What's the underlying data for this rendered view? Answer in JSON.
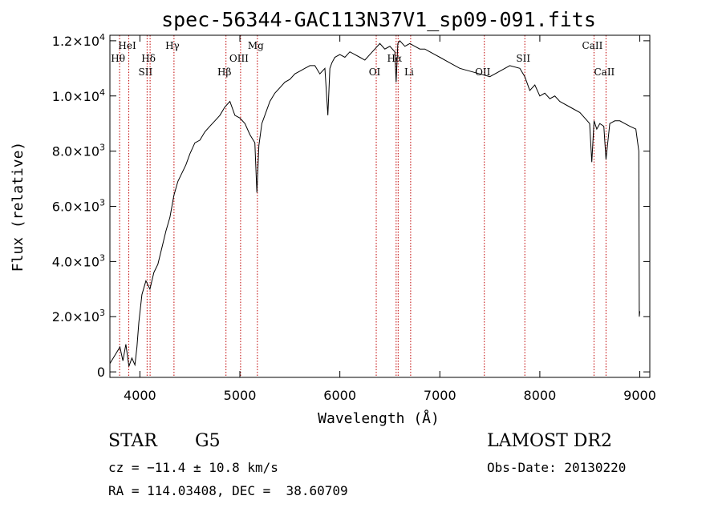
{
  "chart_data": {
    "type": "line",
    "title": "spec-56344-GAC113N37V1_sp09-091.fits",
    "xlabel": "Wavelength (Å)",
    "ylabel": "Flux (relative)",
    "xlim": [
      3700,
      9100
    ],
    "ylim": [
      -200,
      12200
    ],
    "x_ticks": [
      4000,
      5000,
      6000,
      7000,
      8000,
      9000
    ],
    "x_tick_labels": [
      "4000",
      "5000",
      "6000",
      "7000",
      "8000",
      "9000"
    ],
    "y_ticks": [
      0,
      2000,
      4000,
      6000,
      8000,
      10000,
      12000
    ],
    "y_tick_labels": [
      {
        "mant": "0",
        "exp": ""
      },
      {
        "mant": "2.0×10",
        "exp": "3"
      },
      {
        "mant": "4.0×10",
        "exp": "3"
      },
      {
        "mant": "6.0×10",
        "exp": "3"
      },
      {
        "mant": "8.0×10",
        "exp": "3"
      },
      {
        "mant": "1.0×10",
        "exp": "4"
      },
      {
        "mant": "1.2×10",
        "exp": "4"
      }
    ],
    "grid": false,
    "series": [
      {
        "color": "#000000",
        "x": [
          3700,
          3750,
          3800,
          3830,
          3860,
          3890,
          3920,
          3950,
          3970,
          3990,
          4020,
          4060,
          4100,
          4140,
          4180,
          4220,
          4260,
          4300,
          4340,
          4380,
          4420,
          4460,
          4500,
          4550,
          4600,
          4650,
          4700,
          4750,
          4800,
          4850,
          4900,
          4950,
          5000,
          5050,
          5100,
          5150,
          5170,
          5190,
          5220,
          5260,
          5300,
          5350,
          5400,
          5450,
          5500,
          5550,
          5600,
          5650,
          5700,
          5750,
          5800,
          5850,
          5880,
          5900,
          5920,
          5950,
          6000,
          6050,
          6100,
          6150,
          6200,
          6250,
          6300,
          6350,
          6400,
          6450,
          6500,
          6550,
          6563,
          6580,
          6600,
          6650,
          6700,
          6750,
          6800,
          6850,
          6900,
          6950,
          7000,
          7100,
          7200,
          7300,
          7400,
          7500,
          7600,
          7700,
          7800,
          7850,
          7900,
          7950,
          8000,
          8050,
          8100,
          8150,
          8200,
          8300,
          8400,
          8450,
          8498,
          8520,
          8542,
          8570,
          8600,
          8640,
          8662,
          8700,
          8750,
          8800,
          8850,
          8900,
          8960,
          8990,
          8995,
          9000
        ],
        "y": [
          300,
          600,
          900,
          400,
          1000,
          200,
          500,
          250,
          900,
          1800,
          2800,
          3300,
          3000,
          3600,
          3900,
          4500,
          5100,
          5600,
          6400,
          6900,
          7200,
          7500,
          7900,
          8300,
          8400,
          8700,
          8900,
          9100,
          9300,
          9600,
          9800,
          9300,
          9200,
          9000,
          8600,
          8300,
          6500,
          8200,
          9000,
          9400,
          9800,
          10100,
          10300,
          10500,
          10600,
          10800,
          10900,
          11000,
          11100,
          11100,
          10800,
          11000,
          9300,
          11000,
          11200,
          11400,
          11500,
          11400,
          11600,
          11500,
          11400,
          11300,
          11500,
          11700,
          11900,
          11700,
          11800,
          11600,
          10500,
          11900,
          12000,
          11800,
          11900,
          11800,
          11700,
          11700,
          11600,
          11500,
          11400,
          11200,
          11000,
          10900,
          10800,
          10700,
          10900,
          11100,
          11000,
          10700,
          10200,
          10400,
          10000,
          10100,
          9900,
          10000,
          9800,
          9600,
          9400,
          9200,
          9000,
          7600,
          9100,
          8800,
          9000,
          8900,
          7700,
          9000,
          9100,
          9100,
          9000,
          8900,
          8800,
          8000,
          2000,
          2200
        ]
      }
    ],
    "line_markers": [
      {
        "wl": 3797,
        "label": "Hθ",
        "row": 2
      },
      {
        "wl": 3889,
        "label": "HeI",
        "row": 1
      },
      {
        "wl": 4072,
        "label": "SII",
        "row": 3
      },
      {
        "wl": 4102,
        "label": "Hδ",
        "row": 2
      },
      {
        "wl": 4341,
        "label": "Hγ",
        "row": 1
      },
      {
        "wl": 4861,
        "label": "Hβ",
        "row": 3
      },
      {
        "wl": 5007,
        "label": "OIII",
        "row": 2
      },
      {
        "wl": 5175,
        "label": "Mg",
        "row": 1
      },
      {
        "wl": 6364,
        "label": "OI",
        "row": 3
      },
      {
        "wl": 6563,
        "label": "Hα",
        "row": 2
      },
      {
        "wl": 6583,
        "label": "",
        "row": 2
      },
      {
        "wl": 6708,
        "label": "Li",
        "row": 3
      },
      {
        "wl": 7445,
        "label": "OII",
        "row": 3
      },
      {
        "wl": 7850,
        "label": "SII",
        "row": 2
      },
      {
        "wl": 8542,
        "label": "CaII",
        "row": 1
      },
      {
        "wl": 8662,
        "label": "CaII",
        "row": 3
      }
    ],
    "marker_color": "#c00000"
  },
  "info": {
    "object_class": "STAR",
    "subclass": "G5",
    "survey": "LAMOST DR2",
    "redshift": "cz = −11.4 ± 10.8 km/s",
    "obs_date": "Obs-Date: 20130220",
    "coords": "RA = 114.03408, DEC =  38.60709"
  }
}
